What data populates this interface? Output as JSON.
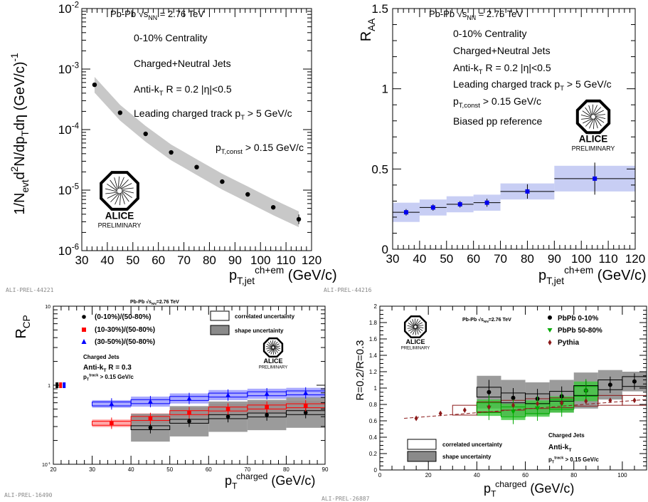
{
  "chart_data": [
    {
      "type": "scatter",
      "panel": "top-left",
      "header": "Pb-Pb √s_NN = 2.76 TeV",
      "header_parts": {
        "pre": "Pb-Pb ",
        "sqrt": "s",
        "sub": "NN",
        "post": " = 2.76 TeV"
      },
      "annotations": [
        "0-10% Centrality",
        "Charged+Neutral Jets",
        "Anti-kT R = 0.2 |η|<0.5",
        "Leading charged track pT > 5 GeV/c",
        "pT,const > 0.15 GeV/c"
      ],
      "ylabel": "1/Nevt d2N/dpT dη (GeV/c)-1",
      "xlabel": "pT,jet ch+em (GeV/c)",
      "x_ticks": [
        "30",
        "40",
        "50",
        "60",
        "70",
        "80",
        "90",
        "100",
        "110",
        "120"
      ],
      "y_ticks": [
        {
          "base": "10",
          "exp": "-6"
        },
        {
          "base": "10",
          "exp": "-5"
        },
        {
          "base": "10",
          "exp": "-4"
        },
        {
          "base": "10",
          "exp": "-3"
        },
        {
          "base": "10",
          "exp": "-2"
        }
      ],
      "xlim": [
        30,
        120
      ],
      "ylim": [
        1e-06,
        0.01
      ],
      "yscale": "log",
      "x": [
        35,
        45,
        55,
        65,
        75,
        85,
        95,
        105,
        115
      ],
      "y": [
        0.00055,
        0.00019,
        8.5e-05,
        4.2e-05,
        2.4e-05,
        1.38e-05,
        8.5e-06,
        5.2e-06,
        3.3e-06
      ],
      "logo_text": [
        "ALICE",
        "PRELIMINARY"
      ],
      "tag": "ALI-PREL-44221"
    },
    {
      "type": "scatter",
      "panel": "top-right",
      "header": "Pb-Pb √s_NN = 2.76 TeV",
      "header_parts": {
        "pre": "Pb-Pb ",
        "sqrt": "s",
        "sub": "NN",
        "post": " = 2.76 TeV"
      },
      "annotations": [
        "0-10% Centrality",
        "Charged+Neutral Jets",
        "Anti-kT R = 0.2 |η|<0.5",
        "Leading charged track pT > 5 GeV/c",
        "pT,const > 0.15 GeV/c",
        "Biased pp reference"
      ],
      "ylabel": "RAA",
      "xlabel": "pT,jet ch+em (GeV/c)",
      "x_ticks": [
        "30",
        "40",
        "50",
        "60",
        "70",
        "80",
        "90",
        "100",
        "110",
        "120"
      ],
      "y_ticks": [
        "0",
        "0.5",
        "1",
        "1.5"
      ],
      "xlim": [
        30,
        120
      ],
      "ylim": [
        0,
        1.5
      ],
      "x": [
        35,
        45,
        55,
        65,
        80,
        105
      ],
      "y": [
        0.23,
        0.26,
        0.28,
        0.29,
        0.36,
        0.44
      ],
      "logo_text": [
        "ALICE",
        "PRELIMINARY"
      ],
      "tag": "ALI-PREL-44216"
    },
    {
      "type": "scatter",
      "panel": "bottom-left",
      "header": "Pb-Pb √s_NN=2.76 TeV",
      "header_parts": {
        "pre": "Pb-Pb ",
        "sqrt": "s",
        "sub": "NN",
        "post": "=2.76 TeV"
      },
      "ylabel": "RCP",
      "xlabel": "pT charged (GeV/c)",
      "x_ticks": [
        "20",
        "30",
        "40",
        "50",
        "60",
        "70",
        "80",
        "90"
      ],
      "y_ticks": [
        {
          "base": "10",
          "exp": "-1"
        },
        {
          "base": "1",
          "exp": ""
        },
        {
          "base": "10",
          "exp": ""
        }
      ],
      "xlim": [
        20,
        90
      ],
      "ylim": [
        0.1,
        10
      ],
      "yscale": "log",
      "x": [
        35,
        45,
        55,
        65,
        75,
        85
      ],
      "series": [
        {
          "name": "(0-10%)/(50-80%)",
          "color": "#000000",
          "values": [
            null,
            0.29,
            0.35,
            0.4,
            0.42,
            0.45
          ]
        },
        {
          "name": "(10-30%)/(50-80%)",
          "color": "#ff0000",
          "values": [
            0.33,
            0.38,
            0.45,
            0.5,
            0.53,
            0.55
          ]
        },
        {
          "name": "(30-50%)/(50-80%)",
          "color": "#0000ff",
          "values": [
            0.58,
            0.62,
            0.68,
            0.75,
            0.78,
            0.8
          ]
        }
      ],
      "legend_boxes": [
        "correlated uncertainty",
        "shape uncertainty"
      ],
      "annotations": [
        "Charged Jets",
        "Anti-kT R = 0.3",
        "pT track > 0.15 GeV/c"
      ],
      "logo_text": [
        "ALICE",
        "PRELIMINARY"
      ],
      "tag": "ALI-PREL-16490"
    },
    {
      "type": "scatter",
      "panel": "bottom-right",
      "header": "Pb-Pb √s_NN=2.76 TeV",
      "header_parts": {
        "pre": "Pb-Pb ",
        "sqrt": "s",
        "sub": "NN",
        "post": "=2.76 TeV"
      },
      "ylabel": "R=0.2/R=0.3",
      "xlabel": "pT charged (GeV/c)",
      "x_ticks": [
        "0",
        "20",
        "40",
        "60",
        "80",
        "100"
      ],
      "y_ticks": [
        "0",
        "0.2",
        "0.4",
        "0.6",
        "0.8",
        "1",
        "1.2",
        "1.4",
        "1.6",
        "1.8",
        "2"
      ],
      "xlim": [
        0,
        110
      ],
      "ylim": [
        0,
        2
      ],
      "series": [
        {
          "name": "PbPb 0-10%",
          "color": "#000000",
          "x": [
            45,
            55,
            65,
            75,
            85,
            95,
            105
          ],
          "values": [
            0.95,
            0.88,
            0.87,
            0.9,
            0.97,
            1.04,
            1.08
          ]
        },
        {
          "name": "PbPb 50-80%",
          "color": "#00aa00",
          "x": [
            45,
            55,
            65,
            75,
            85
          ],
          "values": [
            0.76,
            0.71,
            0.75,
            0.8,
            0.96
          ]
        },
        {
          "name": "Pythia",
          "color": "#8b1a1a",
          "x": [
            15,
            25,
            35,
            45,
            55,
            65,
            75,
            85,
            95,
            105
          ],
          "values": [
            0.63,
            0.69,
            0.73,
            0.77,
            0.79,
            0.81,
            0.82,
            0.84,
            0.85,
            0.85
          ]
        }
      ],
      "legend_boxes": [
        "correlated uncertainty",
        "shape uncertainty"
      ],
      "annotations": [
        "Charged Jets",
        "Anti-kT",
        "pT track > 0.15 GeV/c"
      ],
      "logo_text": [
        "ALICE",
        "PRELIMINARY"
      ],
      "tag": "ALI-PREL-26887"
    }
  ]
}
